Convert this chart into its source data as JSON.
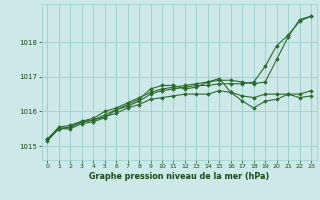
{
  "bg_color": "#cce8e8",
  "grid_color": "#99cccc",
  "line_color": "#2d6a2d",
  "text_color": "#1a4a1a",
  "xlabel": "Graphe pression niveau de la mer (hPa)",
  "xlim": [
    -0.5,
    23.5
  ],
  "ylim": [
    1014.6,
    1019.1
  ],
  "yticks": [
    1015,
    1016,
    1017,
    1018
  ],
  "xticks": [
    0,
    1,
    2,
    3,
    4,
    5,
    6,
    7,
    8,
    9,
    10,
    11,
    12,
    13,
    14,
    15,
    16,
    17,
    18,
    19,
    20,
    21,
    22,
    23
  ],
  "series": [
    {
      "x": [
        0,
        1,
        2,
        3,
        4,
        5,
        6,
        7,
        8,
        9,
        10,
        11,
        12,
        13,
        14,
        15,
        16,
        17,
        18,
        19,
        20,
        21,
        22,
        23
      ],
      "y": [
        1015.2,
        1015.5,
        1015.55,
        1015.7,
        1015.75,
        1015.9,
        1016.05,
        1016.15,
        1016.3,
        1016.5,
        1016.6,
        1016.65,
        1016.7,
        1016.75,
        1016.75,
        1016.8,
        1016.8,
        1016.8,
        1016.85,
        1017.3,
        1017.9,
        1018.2,
        1018.6,
        1018.75
      ]
    },
    {
      "x": [
        0,
        1,
        2,
        3,
        4,
        5,
        6,
        7,
        8,
        9,
        10,
        11,
        12,
        13,
        14,
        15,
        16,
        17,
        18,
        19,
        20,
        21,
        22,
        23
      ],
      "y": [
        1015.2,
        1015.55,
        1015.6,
        1015.72,
        1015.8,
        1016.0,
        1016.1,
        1016.25,
        1016.4,
        1016.55,
        1016.65,
        1016.7,
        1016.75,
        1016.8,
        1016.85,
        1016.9,
        1016.9,
        1016.85,
        1016.8,
        1016.85,
        1017.5,
        1018.15,
        1018.65,
        1018.75
      ]
    },
    {
      "x": [
        0,
        1,
        2,
        3,
        4,
        5,
        6,
        7,
        8,
        9,
        10,
        11,
        12,
        13,
        14,
        15,
        16,
        17,
        18,
        19,
        20,
        21,
        22,
        23
      ],
      "y": [
        1015.15,
        1015.5,
        1015.5,
        1015.65,
        1015.7,
        1015.82,
        1016.05,
        1016.2,
        1016.35,
        1016.65,
        1016.75,
        1016.75,
        1016.65,
        1016.7,
        1016.85,
        1016.95,
        1016.55,
        1016.3,
        1016.1,
        1016.3,
        1016.35,
        1016.5,
        1016.4,
        1016.45
      ]
    },
    {
      "x": [
        0,
        1,
        2,
        3,
        4,
        5,
        6,
        7,
        8,
        9,
        10,
        11,
        12,
        13,
        14,
        15,
        16,
        17,
        18,
        19,
        20,
        21,
        22,
        23
      ],
      "y": [
        1015.2,
        1015.5,
        1015.55,
        1015.7,
        1015.75,
        1015.85,
        1015.95,
        1016.1,
        1016.2,
        1016.35,
        1016.4,
        1016.45,
        1016.5,
        1016.5,
        1016.5,
        1016.6,
        1016.55,
        1016.45,
        1016.4,
        1016.5,
        1016.5,
        1016.5,
        1016.5,
        1016.6
      ]
    }
  ]
}
